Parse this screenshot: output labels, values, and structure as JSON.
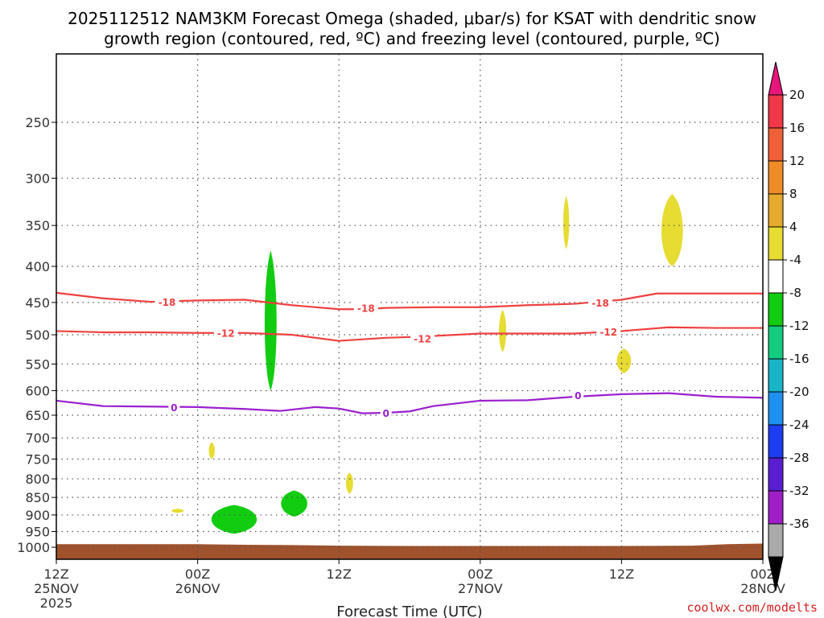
{
  "chart_data": {
    "type": "heatmap",
    "title_line1": "2025112512 NAM3KM Forecast Omega (shaded, μbar/s) for KSAT with dendritic snow",
    "title_line2": "growth region (contoured, red, ºC) and freezing level (contoured, purple, ºC)",
    "xlabel": "Forecast Time (UTC)",
    "credit": "coolwx.com/modelts",
    "x_range_hours": [
      0,
      60
    ],
    "y_range_hpa": [
      200,
      1040
    ],
    "pressure_ticks": [
      250,
      300,
      350,
      400,
      450,
      500,
      550,
      600,
      650,
      700,
      750,
      800,
      850,
      900,
      950,
      1000
    ],
    "time_ticks": [
      {
        "h": 0,
        "l1": "12Z",
        "l2": "25NOV",
        "l3": "2025"
      },
      {
        "h": 12,
        "l1": "00Z",
        "l2": "26NOV",
        "l3": ""
      },
      {
        "h": 24,
        "l1": "12Z",
        "l2": "",
        "l3": ""
      },
      {
        "h": 36,
        "l1": "00Z",
        "l2": "27NOV",
        "l3": ""
      },
      {
        "h": 48,
        "l1": "12Z",
        "l2": "",
        "l3": ""
      },
      {
        "h": 60,
        "l1": "00Z",
        "l2": "28NOV",
        "l3": ""
      }
    ],
    "contours": [
      {
        "name": "-18",
        "color": "#ef4040",
        "points": [
          [
            0,
            436
          ],
          [
            4,
            444
          ],
          [
            8,
            449
          ],
          [
            12,
            447
          ],
          [
            16,
            446
          ],
          [
            20,
            454
          ],
          [
            24,
            460
          ],
          [
            26,
            460
          ],
          [
            28,
            458
          ],
          [
            32,
            457
          ],
          [
            36,
            457
          ],
          [
            40,
            454
          ],
          [
            44,
            452
          ],
          [
            48,
            446
          ],
          [
            51,
            437
          ],
          [
            55,
            437
          ],
          [
            60,
            437
          ]
        ],
        "labels": [
          [
            9.4,
            449
          ],
          [
            26.3,
            458
          ],
          [
            46.2,
            450
          ]
        ]
      },
      {
        "name": "-12",
        "color": "#ef4040",
        "points": [
          [
            0,
            494
          ],
          [
            4,
            496
          ],
          [
            8,
            496
          ],
          [
            12,
            497
          ],
          [
            16,
            497
          ],
          [
            20,
            500
          ],
          [
            24,
            510
          ],
          [
            28,
            505
          ],
          [
            31,
            503
          ],
          [
            36,
            498
          ],
          [
            40,
            498
          ],
          [
            44,
            498
          ],
          [
            48,
            494
          ],
          [
            52,
            488
          ],
          [
            56,
            489
          ],
          [
            60,
            489
          ]
        ],
        "labels": [
          [
            14.4,
            497
          ],
          [
            31.1,
            506
          ],
          [
            46.9,
            495
          ]
        ]
      },
      {
        "name": "0",
        "color": "#9b1fcf",
        "points": [
          [
            0,
            620
          ],
          [
            4,
            631
          ],
          [
            8,
            632
          ],
          [
            12,
            633
          ],
          [
            16,
            637
          ],
          [
            19,
            641
          ],
          [
            22,
            633
          ],
          [
            24,
            636
          ],
          [
            26,
            646
          ],
          [
            28,
            645
          ],
          [
            30,
            642
          ],
          [
            32,
            631
          ],
          [
            36,
            620
          ],
          [
            40,
            619
          ],
          [
            44,
            612
          ],
          [
            48,
            607
          ],
          [
            52,
            605
          ],
          [
            56,
            612
          ],
          [
            60,
            614
          ]
        ],
        "labels": [
          [
            10.0,
            633
          ],
          [
            28.0,
            645
          ],
          [
            44.3,
            609
          ]
        ]
      }
    ],
    "omega_regions": [
      {
        "value": -6,
        "color": "#11cc11",
        "center": [
          18.2,
          490
        ],
        "half_width_h": 0.5,
        "half_height_hpa": 110
      },
      {
        "value": -6,
        "color": "#11cc11",
        "center": [
          15.1,
          914
        ],
        "half_width_h": 1.9,
        "half_height_hpa": 43
      },
      {
        "value": -6,
        "color": "#11cc11",
        "center": [
          20.2,
          868
        ],
        "half_width_h": 1.1,
        "half_height_hpa": 37
      },
      {
        "value": 5,
        "color": "#e6dc32",
        "center": [
          43.3,
          348
        ],
        "half_width_h": 0.25,
        "half_height_hpa": 30
      },
      {
        "value": 5,
        "color": "#e6dc32",
        "center": [
          52.3,
          358
        ],
        "half_width_h": 0.9,
        "half_height_hpa": 42
      },
      {
        "value": 5,
        "color": "#e6dc32",
        "center": [
          37.9,
          495
        ],
        "half_width_h": 0.3,
        "half_height_hpa": 34
      },
      {
        "value": 5,
        "color": "#e6dc32",
        "center": [
          48.2,
          545
        ],
        "half_width_h": 0.6,
        "half_height_hpa": 22
      },
      {
        "value": 5,
        "color": "#e6dc32",
        "center": [
          13.2,
          730
        ],
        "half_width_h": 0.25,
        "half_height_hpa": 20
      },
      {
        "value": 5,
        "color": "#e6dc32",
        "center": [
          24.9,
          812
        ],
        "half_width_h": 0.3,
        "half_height_hpa": 28
      },
      {
        "value": 5,
        "color": "#e6dc32",
        "center": [
          10.3,
          888
        ],
        "half_width_h": 0.5,
        "half_height_hpa": 6
      }
    ],
    "ground": {
      "color": "#a0522d",
      "top": [
        [
          0,
          990
        ],
        [
          12,
          990
        ],
        [
          16,
          992
        ],
        [
          20,
          993
        ],
        [
          24,
          995
        ],
        [
          30,
          996
        ],
        [
          40,
          996
        ],
        [
          48,
          996
        ],
        [
          54,
          995
        ],
        [
          57,
          990
        ],
        [
          60,
          988
        ]
      ]
    },
    "colorbar": {
      "ticks": [
        "20",
        "16",
        "12",
        "8",
        "4",
        "-4",
        "-8",
        "-12",
        "-16",
        "-20",
        "-24",
        "-28",
        "-32",
        "-36"
      ],
      "bins": [
        "#f03848",
        "#f06038",
        "#f08c28",
        "#e6aa2c",
        "#e6dc32",
        "#ffffff",
        "#11cc11",
        "#14cc80",
        "#1ab4c8",
        "#1e90f0",
        "#1e3cf0",
        "#5a1ed2",
        "#a01ec8",
        "#aaaaaa"
      ],
      "top_color": "#e8157a",
      "bottom_color": "#000000"
    }
  }
}
